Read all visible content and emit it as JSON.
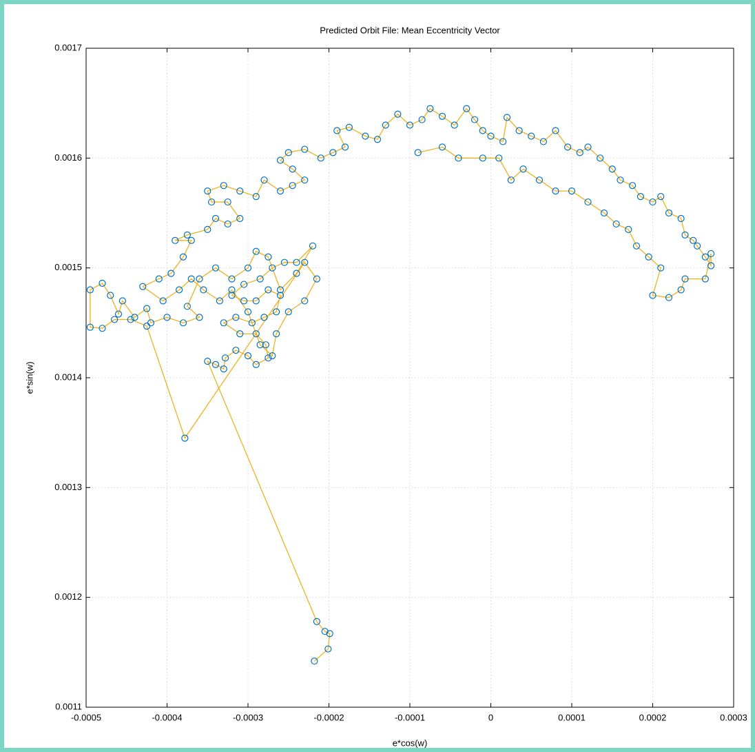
{
  "chart_data": {
    "type": "line",
    "title": "Predicted Orbit File: Mean Eccentricity Vector",
    "xlabel": "e*cos(w)",
    "ylabel": "e*sin(w)",
    "x": [
      -0.000218,
      -0.000201,
      -0.000199,
      -0.000205,
      -0.000215,
      -0.00035,
      -0.00034,
      -0.00033,
      -0.000328,
      -0.000315,
      -0.0003,
      -0.00029,
      -0.000275,
      -0.000278,
      -0.00029,
      -0.00031,
      -0.00033,
      -0.000315,
      -0.000295,
      -0.00028,
      -0.000265,
      -0.00026,
      -0.000275,
      -0.00029,
      -0.000305,
      -0.00032,
      -0.000305,
      -0.000285,
      -0.00027,
      -0.000255,
      -0.00024,
      -0.00022,
      -0.00024,
      -0.00026,
      -0.000275,
      -0.00029,
      -0.0003,
      -0.00032,
      -0.00034,
      -0.00036,
      -0.000375,
      -0.00036,
      -0.00038,
      -0.0004,
      -0.00042,
      -0.000425,
      -0.00044,
      -0.000455,
      -0.00046,
      -0.00047,
      -0.00048,
      -0.000495,
      -0.000495,
      -0.00048,
      -0.000465,
      -0.000445,
      -0.000425,
      -0.000378,
      -0.00023,
      -0.000215,
      -0.00023,
      -0.00025,
      -0.000265,
      -0.00027,
      -0.000285,
      -0.0003,
      -0.00032,
      -0.000335,
      -0.000355,
      -0.00037,
      -0.000385,
      -0.000405,
      -0.00043,
      -0.00041,
      -0.000395,
      -0.00038,
      -0.00037,
      -0.00039,
      -0.000375,
      -0.00035,
      -0.00034,
      -0.000325,
      -0.00031,
      -0.000325,
      -0.000345,
      -0.00035,
      -0.00033,
      -0.00031,
      -0.00029,
      -0.00028,
      -0.00026,
      -0.000245,
      -0.00023,
      -0.000245,
      -0.00026,
      -0.00025,
      -0.00023,
      -0.00021,
      -0.000195,
      -0.00018,
      -0.00019,
      -0.000175,
      -0.000155,
      -0.00014,
      -0.00013,
      -0.000115,
      -0.0001,
      -8.5e-05,
      -7.5e-05,
      -6e-05,
      -4.5e-05,
      -3e-05,
      -2e-05,
      -1e-05,
      0,
      1.5e-05,
      2e-05,
      3.5e-05,
      5e-05,
      6.5e-05,
      8e-05,
      9.5e-05,
      0.00011,
      0.00012,
      0.000135,
      0.00015,
      0.00016,
      0.000175,
      0.000185,
      0.0002,
      0.00021,
      0.00022,
      0.000235,
      0.00024,
      0.00025,
      0.000255,
      0.000265,
      0.000272,
      0.000272,
      0.000265,
      0.00024,
      0.000235,
      0.00022,
      0.0002,
      0.00021,
      0.000195,
      0.00018,
      0.00017,
      0.000155,
      0.00014,
      0.00012,
      0.0001,
      8e-05,
      6e-05,
      4e-05,
      2.5e-05,
      1e-05,
      -1e-05,
      -4e-05,
      -6e-05,
      -9e-05
    ],
    "series": [
      {
        "color": "#edb120",
        "marker_color": "#0072bd",
        "values": [
          0.001142,
          0.001153,
          0.001167,
          0.001169,
          0.001178,
          0.001415,
          0.001412,
          0.001408,
          0.001418,
          0.001425,
          0.00142,
          0.001412,
          0.001418,
          0.00143,
          0.00144,
          0.00144,
          0.00145,
          0.001455,
          0.00145,
          0.001455,
          0.00146,
          0.001475,
          0.00148,
          0.00147,
          0.00147,
          0.001475,
          0.001485,
          0.00149,
          0.0015,
          0.001505,
          0.001505,
          0.00152,
          0.001495,
          0.00148,
          0.00151,
          0.001515,
          0.0015,
          0.00149,
          0.0015,
          0.00149,
          0.001465,
          0.001455,
          0.00145,
          0.001455,
          0.00145,
          0.001463,
          0.001455,
          0.00147,
          0.001458,
          0.001475,
          0.001486,
          0.00148,
          0.001446,
          0.001445,
          0.001453,
          0.001453,
          0.001447,
          0.001345,
          0.001505,
          0.00149,
          0.00147,
          0.00146,
          0.00144,
          0.00142,
          0.00143,
          0.00146,
          0.00148,
          0.00147,
          0.00148,
          0.00149,
          0.00148,
          0.00147,
          0.001483,
          0.00149,
          0.001495,
          0.00151,
          0.001525,
          0.001525,
          0.00153,
          0.001535,
          0.001545,
          0.00154,
          0.001545,
          0.00156,
          0.00156,
          0.00157,
          0.001575,
          0.00157,
          0.001565,
          0.00158,
          0.00157,
          0.001575,
          0.00158,
          0.00159,
          0.001598,
          0.001605,
          0.001608,
          0.0016,
          0.001605,
          0.00161,
          0.001625,
          0.001628,
          0.00162,
          0.001617,
          0.00163,
          0.00164,
          0.00163,
          0.001635,
          0.001645,
          0.001638,
          0.00163,
          0.001645,
          0.001635,
          0.001625,
          0.00162,
          0.001615,
          0.001637,
          0.001625,
          0.00162,
          0.001615,
          0.001625,
          0.00161,
          0.001605,
          0.00161,
          0.0016,
          0.00159,
          0.00158,
          0.001575,
          0.001565,
          0.00156,
          0.001565,
          0.00155,
          0.001545,
          0.00153,
          0.001525,
          0.00152,
          0.00151,
          0.001502,
          0.001513,
          0.00149,
          0.00149,
          0.00148,
          0.001473,
          0.001475,
          0.0015,
          0.00151,
          0.00152,
          0.001535,
          0.00154,
          0.00155,
          0.00156,
          0.00157,
          0.00157,
          0.00158,
          0.00159,
          0.00158,
          0.0016,
          0.0016,
          0.0016,
          0.00161,
          0.001605
        ]
      }
    ],
    "xlim": [
      -0.0005,
      0.0003
    ],
    "ylim": [
      0.0011,
      0.0017
    ],
    "xticks": [
      -0.0005,
      -0.0004,
      -0.0003,
      -0.0002,
      -0.0001,
      0,
      0.0001,
      0.0002,
      0.0003
    ],
    "yticks": [
      0.0011,
      0.0012,
      0.0013,
      0.0014,
      0.0015,
      0.0016,
      0.0017
    ],
    "grid": true
  }
}
